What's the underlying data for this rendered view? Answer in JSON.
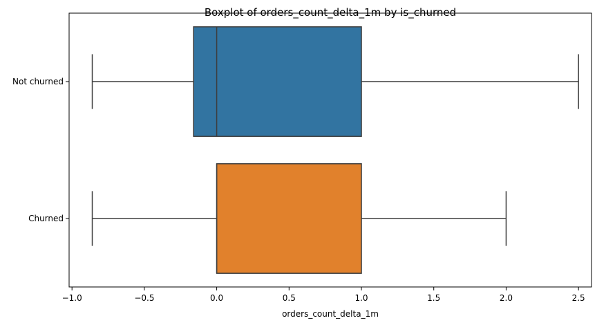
{
  "chart_data": {
    "type": "boxplot",
    "orientation": "horizontal",
    "title": "Boxplot of orders_count_delta_1m by is_churned",
    "xlabel": "orders_count_delta_1m",
    "ylabel": "",
    "xlim": [
      -1.02,
      2.59
    ],
    "xticks": [
      -1.0,
      -0.5,
      0.0,
      0.5,
      1.0,
      1.5,
      2.0,
      2.5
    ],
    "xtick_labels": [
      "−1.0",
      "−0.5",
      "0.0",
      "0.5",
      "1.0",
      "1.5",
      "2.0",
      "2.5"
    ],
    "grid": false,
    "categories": [
      "Not churned",
      "Churned"
    ],
    "boxes": [
      {
        "category": "Not churned",
        "whisker_low": -0.86,
        "q1": -0.16,
        "median": 0.0,
        "q3": 1.0,
        "whisker_high": 2.5,
        "color": "#3274a1"
      },
      {
        "category": "Churned",
        "whisker_low": -0.86,
        "q1": 0.0,
        "median": 0.0,
        "q3": 1.0,
        "whisker_high": 2.0,
        "color": "#e1812c"
      }
    ],
    "line_color": "#3d3d3d"
  }
}
